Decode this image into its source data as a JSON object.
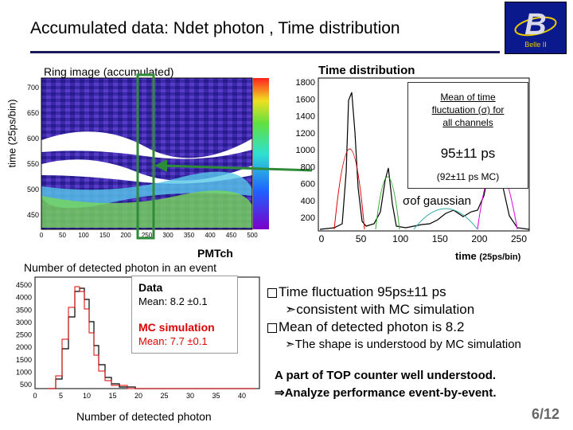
{
  "slide": {
    "title": "Accumulated data: Ndet photon , Time distribution",
    "page_number": "6/12"
  },
  "logo": {
    "subtitle": "Belle II"
  },
  "ring_image": {
    "title": "Ring image (accumulated)",
    "ylabel": "time (25ps/bin)",
    "xlabel": "PMTch",
    "y_ticks": [
      "700",
      "650",
      "600",
      "550",
      "500",
      "450"
    ],
    "x_ticks": [
      "0",
      "50",
      "100",
      "150",
      "200",
      "250",
      "300",
      "350",
      "400",
      "450",
      "500"
    ]
  },
  "time_distribution": {
    "title": "Time distribution",
    "xlabel": "time",
    "xlabel_unit": "(25ps/bin)",
    "y_ticks": [
      "1800",
      "1600",
      "1400",
      "1200",
      "1000",
      "800",
      "600",
      "400",
      "200"
    ],
    "x_ticks": [
      "0",
      "50",
      "100",
      "150",
      "200",
      "250"
    ],
    "mean_box": {
      "line1": "Mean of time",
      "line2": "fluctuation (σ) for",
      "line3": "all channels",
      "value": "95±11 ps",
      "mc": "(92±11 ps MC)"
    },
    "sigma_label": "σof gaussian"
  },
  "ndet": {
    "title": "Number of detected photon in an event",
    "xlabel": "Number of detected photon",
    "y_ticks": [
      "4500",
      "4000",
      "3500",
      "3000",
      "2500",
      "2000",
      "1500",
      "1000",
      "500"
    ],
    "x_ticks": [
      "0",
      "5",
      "10",
      "15",
      "20",
      "25",
      "30",
      "35",
      "40"
    ],
    "legend": {
      "data_label": "Data",
      "data_mean": "Mean: 8.2 ±0.1",
      "mc_label": "MC simulation",
      "mc_mean": "Mean: 7.7 ±0.1"
    }
  },
  "bullets": {
    "b1": "Time fluctuation 95ps±11 ps",
    "b1_sub": "➣consistent with MC simulation",
    "b2": "Mean of detected photon is 8.2",
    "b2_sub": "➣The shape is understood by MC simulation"
  },
  "conclusion": {
    "line1": "A part of TOP counter well understood.",
    "line2": "⇒Analyze performance event-by-event."
  },
  "colors": {
    "accent_red": "#d00000",
    "logo_blue": "#0a1a8c",
    "arrow_green": "#2e8b3a"
  }
}
